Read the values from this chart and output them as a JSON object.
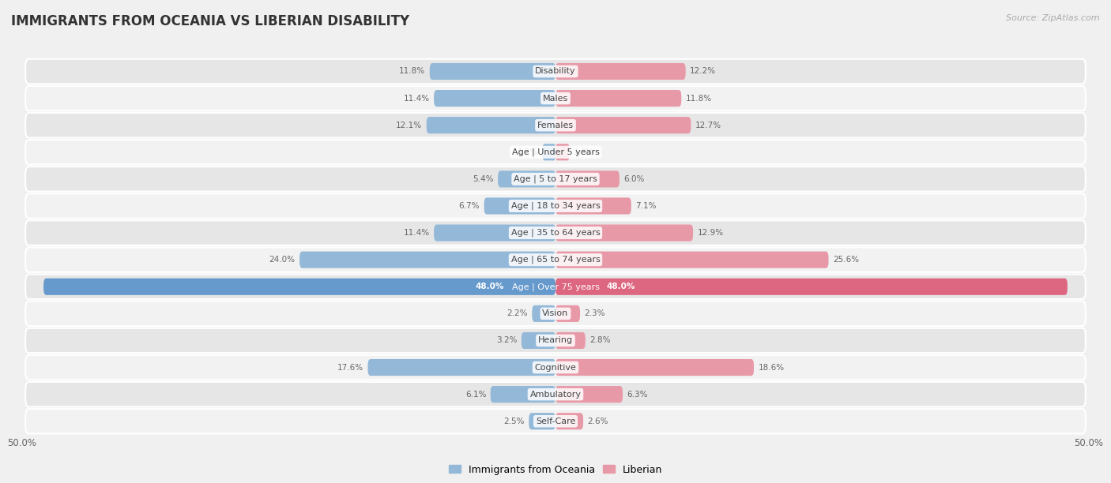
{
  "title": "IMMIGRANTS FROM OCEANIA VS LIBERIAN DISABILITY",
  "source": "Source: ZipAtlas.com",
  "categories": [
    "Disability",
    "Males",
    "Females",
    "Age | Under 5 years",
    "Age | 5 to 17 years",
    "Age | 18 to 34 years",
    "Age | 35 to 64 years",
    "Age | 65 to 74 years",
    "Age | Over 75 years",
    "Vision",
    "Hearing",
    "Cognitive",
    "Ambulatory",
    "Self-Care"
  ],
  "oceania_values": [
    11.8,
    11.4,
    12.1,
    1.2,
    5.4,
    6.7,
    11.4,
    24.0,
    48.0,
    2.2,
    3.2,
    17.6,
    6.1,
    2.5
  ],
  "liberian_values": [
    12.2,
    11.8,
    12.7,
    1.3,
    6.0,
    7.1,
    12.9,
    25.6,
    48.0,
    2.3,
    2.8,
    18.6,
    6.3,
    2.6
  ],
  "oceania_color": "#93b8d8",
  "liberian_color": "#e899a8",
  "oceania_color_full": "#6699cc",
  "liberian_color_full": "#dd6680",
  "axis_limit": 50.0,
  "bar_height": 0.62,
  "row_bg_light": "#f2f2f2",
  "row_bg_dark": "#e6e6e6",
  "title_fontsize": 12,
  "label_fontsize": 8,
  "value_fontsize": 7.5,
  "legend_label_oceania": "Immigrants from Oceania",
  "legend_label_liberian": "Liberian",
  "special_index": 8
}
